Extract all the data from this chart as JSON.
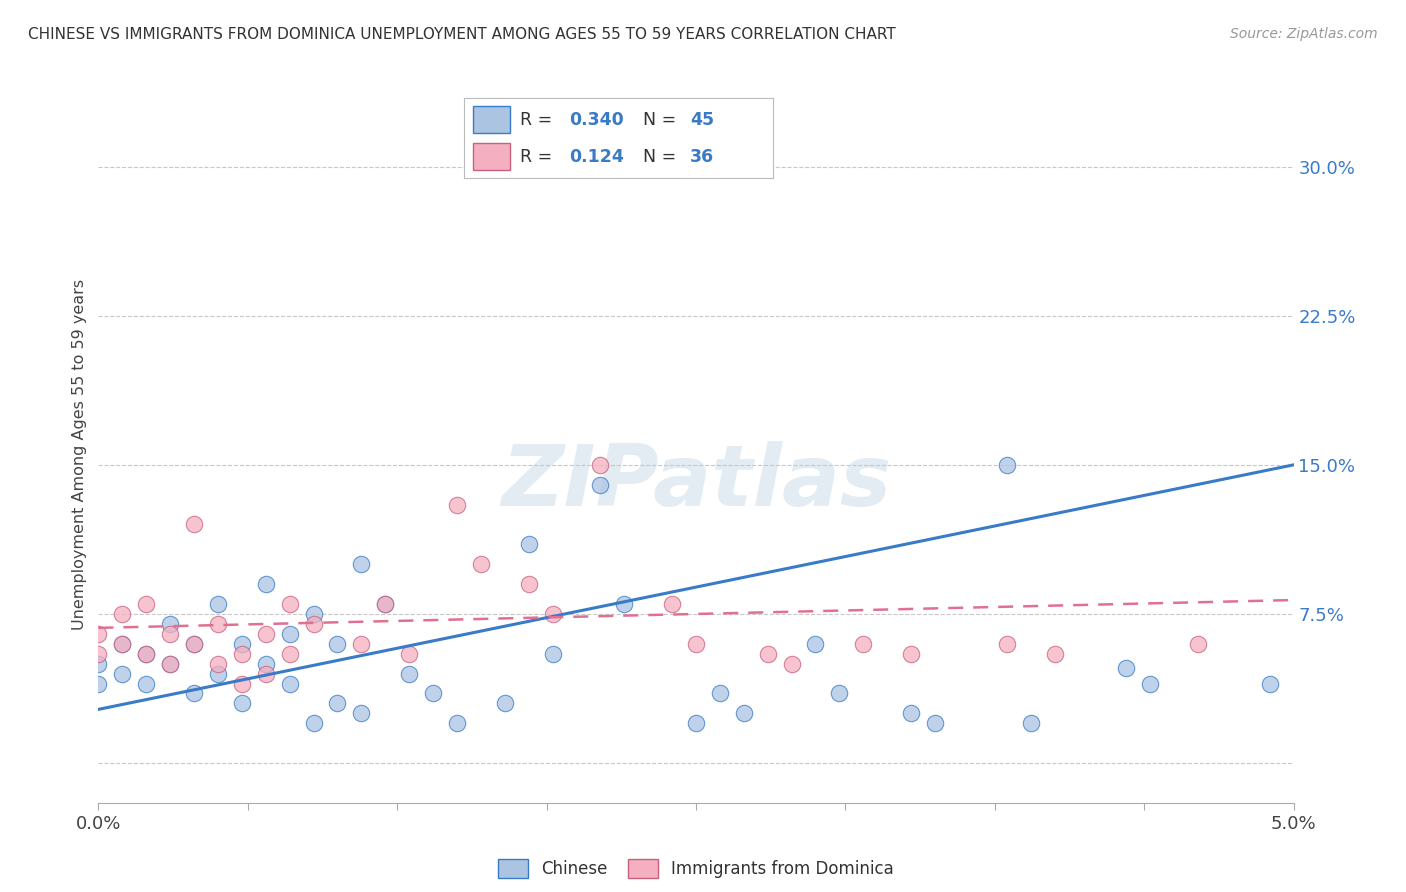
{
  "title": "CHINESE VS IMMIGRANTS FROM DOMINICA UNEMPLOYMENT AMONG AGES 55 TO 59 YEARS CORRELATION CHART",
  "source": "Source: ZipAtlas.com",
  "ylabel": "Unemployment Among Ages 55 to 59 years",
  "xlim": [
    0.0,
    0.05
  ],
  "ylim": [
    -0.02,
    0.33
  ],
  "yticks": [
    0.0,
    0.075,
    0.15,
    0.225,
    0.3
  ],
  "ytick_labels": [
    "",
    "7.5%",
    "15.0%",
    "22.5%",
    "30.0%"
  ],
  "xticks": [
    0.0,
    0.00625,
    0.0125,
    0.01875,
    0.025,
    0.03125,
    0.0375,
    0.04375,
    0.05
  ],
  "xtick_labels": [
    "0.0%",
    "",
    "",
    "",
    "",
    "",
    "",
    "",
    "5.0%"
  ],
  "chinese_color": "#aac4e2",
  "dominica_color": "#f4afc0",
  "chinese_line_color": "#3a7bc8",
  "dominica_line_color": "#e07090",
  "R_chinese": 0.34,
  "N_chinese": 45,
  "R_dominica": 0.124,
  "N_dominica": 36,
  "watermark": "ZIPatlas",
  "chinese_scatter": [
    [
      0.0,
      0.05
    ],
    [
      0.0,
      0.04
    ],
    [
      0.001,
      0.06
    ],
    [
      0.001,
      0.045
    ],
    [
      0.002,
      0.055
    ],
    [
      0.002,
      0.04
    ],
    [
      0.003,
      0.07
    ],
    [
      0.003,
      0.05
    ],
    [
      0.004,
      0.06
    ],
    [
      0.004,
      0.035
    ],
    [
      0.005,
      0.08
    ],
    [
      0.005,
      0.045
    ],
    [
      0.006,
      0.06
    ],
    [
      0.006,
      0.03
    ],
    [
      0.007,
      0.09
    ],
    [
      0.007,
      0.05
    ],
    [
      0.008,
      0.065
    ],
    [
      0.008,
      0.04
    ],
    [
      0.009,
      0.075
    ],
    [
      0.009,
      0.02
    ],
    [
      0.01,
      0.06
    ],
    [
      0.01,
      0.03
    ],
    [
      0.011,
      0.1
    ],
    [
      0.011,
      0.025
    ],
    [
      0.012,
      0.08
    ],
    [
      0.013,
      0.045
    ],
    [
      0.014,
      0.035
    ],
    [
      0.015,
      0.02
    ],
    [
      0.017,
      0.03
    ],
    [
      0.018,
      0.11
    ],
    [
      0.019,
      0.055
    ],
    [
      0.021,
      0.14
    ],
    [
      0.022,
      0.08
    ],
    [
      0.025,
      0.02
    ],
    [
      0.026,
      0.035
    ],
    [
      0.027,
      0.025
    ],
    [
      0.03,
      0.06
    ],
    [
      0.031,
      0.035
    ],
    [
      0.034,
      0.025
    ],
    [
      0.035,
      0.02
    ],
    [
      0.038,
      0.15
    ],
    [
      0.039,
      0.02
    ],
    [
      0.043,
      0.048
    ],
    [
      0.044,
      0.04
    ],
    [
      0.049,
      0.04
    ]
  ],
  "dominica_scatter": [
    [
      0.0,
      0.065
    ],
    [
      0.0,
      0.055
    ],
    [
      0.001,
      0.075
    ],
    [
      0.001,
      0.06
    ],
    [
      0.002,
      0.08
    ],
    [
      0.002,
      0.055
    ],
    [
      0.003,
      0.065
    ],
    [
      0.003,
      0.05
    ],
    [
      0.004,
      0.12
    ],
    [
      0.004,
      0.06
    ],
    [
      0.005,
      0.07
    ],
    [
      0.005,
      0.05
    ],
    [
      0.006,
      0.055
    ],
    [
      0.006,
      0.04
    ],
    [
      0.007,
      0.065
    ],
    [
      0.007,
      0.045
    ],
    [
      0.008,
      0.08
    ],
    [
      0.008,
      0.055
    ],
    [
      0.009,
      0.07
    ],
    [
      0.011,
      0.06
    ],
    [
      0.012,
      0.08
    ],
    [
      0.013,
      0.055
    ],
    [
      0.015,
      0.13
    ],
    [
      0.016,
      0.1
    ],
    [
      0.018,
      0.09
    ],
    [
      0.019,
      0.075
    ],
    [
      0.021,
      0.15
    ],
    [
      0.024,
      0.08
    ],
    [
      0.025,
      0.06
    ],
    [
      0.028,
      0.055
    ],
    [
      0.029,
      0.05
    ],
    [
      0.032,
      0.06
    ],
    [
      0.034,
      0.055
    ],
    [
      0.038,
      0.06
    ],
    [
      0.04,
      0.055
    ],
    [
      0.046,
      0.06
    ]
  ],
  "chinese_line": [
    [
      0.0,
      0.027
    ],
    [
      0.05,
      0.15
    ]
  ],
  "dominica_line": [
    [
      0.0,
      0.068
    ],
    [
      0.05,
      0.082
    ]
  ],
  "background_color": "#ffffff",
  "grid_color": "#c8c8c8"
}
